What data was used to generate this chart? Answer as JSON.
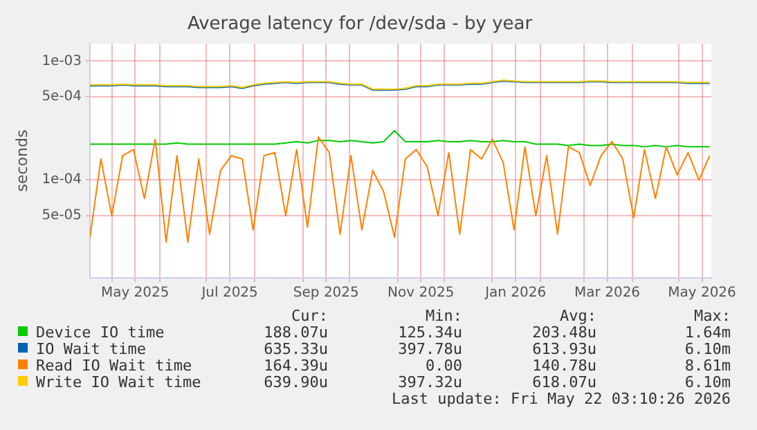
{
  "chart_data": {
    "type": "line",
    "title": "Average latency for /dev/sda - by year",
    "ylabel": "seconds",
    "log": "y",
    "grid": true,
    "legend": "bottom",
    "x": [
      "2025-04-17",
      "2025-04-24",
      "2025-05-01",
      "2025-05-08",
      "2025-05-15",
      "2025-05-22",
      "2025-05-29",
      "2025-06-05",
      "2025-06-12",
      "2025-06-19",
      "2025-06-26",
      "2025-07-03",
      "2025-07-10",
      "2025-07-17",
      "2025-07-24",
      "2025-07-31",
      "2025-08-07",
      "2025-08-14",
      "2025-08-21",
      "2025-08-28",
      "2025-09-04",
      "2025-09-11",
      "2025-09-18",
      "2025-09-25",
      "2025-10-02",
      "2025-10-09",
      "2025-10-16",
      "2025-10-23",
      "2025-10-30",
      "2025-11-06",
      "2025-11-13",
      "2025-11-20",
      "2025-11-27",
      "2025-12-04",
      "2025-12-11",
      "2025-12-18",
      "2025-12-25",
      "2026-01-01",
      "2026-01-08",
      "2026-01-15",
      "2026-01-22",
      "2026-01-29",
      "2026-02-05",
      "2026-02-12",
      "2026-02-19",
      "2026-02-26",
      "2026-03-05",
      "2026-03-12",
      "2026-03-19",
      "2026-03-26",
      "2026-04-02",
      "2026-04-09",
      "2026-04-16",
      "2026-04-23",
      "2026-04-30",
      "2026-05-07",
      "2026-05-14",
      "2026-05-21"
    ],
    "xlim": [
      "2025-04-17",
      "2026-05-22"
    ],
    "xticks": [
      {
        "value": "2025-05-01",
        "label": null
      },
      {
        "value": "2025-05-16",
        "label": "May 2025"
      },
      {
        "value": "2025-06-01",
        "label": null
      },
      {
        "value": "2025-07-01",
        "label": null
      },
      {
        "value": "2025-07-16",
        "label": "Jul 2025"
      },
      {
        "value": "2025-08-01",
        "label": null
      },
      {
        "value": "2025-09-01",
        "label": null
      },
      {
        "value": "2025-09-16",
        "label": "Sep 2025"
      },
      {
        "value": "2025-10-01",
        "label": null
      },
      {
        "value": "2025-11-01",
        "label": null
      },
      {
        "value": "2025-11-16",
        "label": "Nov 2025"
      },
      {
        "value": "2025-12-01",
        "label": null
      },
      {
        "value": "2026-01-01",
        "label": null
      },
      {
        "value": "2026-01-16",
        "label": "Jan 2026"
      },
      {
        "value": "2026-02-01",
        "label": null
      },
      {
        "value": "2026-03-01",
        "label": null
      },
      {
        "value": "2026-03-16",
        "label": "Mar 2026"
      },
      {
        "value": "2026-04-01",
        "label": null
      },
      {
        "value": "2026-05-01",
        "label": null
      },
      {
        "value": "2026-05-16",
        "label": "May 2026"
      }
    ],
    "ylim": [
      1.5e-05,
      0.0014
    ],
    "yticks": [
      {
        "value": 5e-05,
        "label": "5e-05"
      },
      {
        "value": 0.0001,
        "label": "1e-04"
      },
      {
        "value": 0.0005,
        "label": "5e-04"
      },
      {
        "value": 0.001,
        "label": "1e-03"
      }
    ],
    "series": [
      {
        "name": "Device IO time",
        "color": "#00cc00",
        "values": [
          0.0002,
          0.0002,
          0.0002,
          0.0002,
          0.0002,
          0.0002,
          0.0002,
          0.0002,
          0.000205,
          0.0002,
          0.0002,
          0.0002,
          0.0002,
          0.0002,
          0.0002,
          0.0002,
          0.0002,
          0.0002,
          0.000205,
          0.00021,
          0.000205,
          0.000215,
          0.000215,
          0.00021,
          0.000215,
          0.00021,
          0.000205,
          0.00021,
          0.00026,
          0.00021,
          0.00021,
          0.00021,
          0.000215,
          0.00021,
          0.00021,
          0.000215,
          0.00021,
          0.00021,
          0.000215,
          0.00021,
          0.00021,
          0.0002,
          0.0002,
          0.0002,
          0.000195,
          0.0002,
          0.000195,
          0.000195,
          0.0002,
          0.000195,
          0.000195,
          0.00019,
          0.000195,
          0.00019,
          0.000195,
          0.00019,
          0.00019,
          0.00019
        ]
      },
      {
        "name": "IO Wait time",
        "color": "#0066b3",
        "values": [
          0.00062,
          0.00062,
          0.00062,
          0.00063,
          0.00062,
          0.00062,
          0.00062,
          0.00061,
          0.00061,
          0.00061,
          0.0006,
          0.0006,
          0.0006,
          0.00061,
          0.00059,
          0.00062,
          0.00064,
          0.00065,
          0.00066,
          0.00065,
          0.00066,
          0.00066,
          0.00066,
          0.00064,
          0.00063,
          0.00063,
          0.00057,
          0.00057,
          0.00057,
          0.00058,
          0.00061,
          0.00061,
          0.00063,
          0.00063,
          0.00063,
          0.00064,
          0.00064,
          0.00066,
          0.00068,
          0.00067,
          0.00066,
          0.00066,
          0.00066,
          0.00066,
          0.00066,
          0.00066,
          0.00067,
          0.00067,
          0.00066,
          0.00066,
          0.00066,
          0.00066,
          0.00066,
          0.00066,
          0.00066,
          0.00065,
          0.00065,
          0.00065
        ]
      },
      {
        "name": "Read IO Wait time",
        "color": "#ff8000",
        "values": [
          3.3e-05,
          0.00015,
          5e-05,
          0.00016,
          0.00018,
          7e-05,
          0.00022,
          3e-05,
          0.00016,
          3e-05,
          0.00015,
          3.5e-05,
          0.00012,
          0.00016,
          0.00015,
          3.8e-05,
          0.00016,
          0.00017,
          5e-05,
          0.00018,
          4e-05,
          0.00023,
          0.00017,
          3.5e-05,
          0.00016,
          3.8e-05,
          0.00012,
          8e-05,
          3.3e-05,
          0.00015,
          0.00018,
          0.00013,
          5e-05,
          0.00017,
          3.5e-05,
          0.00018,
          0.00015,
          0.00022,
          0.00014,
          3.8e-05,
          0.00019,
          5e-05,
          0.00016,
          3.5e-05,
          0.00019,
          0.00017,
          9e-05,
          0.00016,
          0.00021,
          0.00015,
          4.8e-05,
          0.00018,
          7e-05,
          0.00019,
          0.00011,
          0.00017,
          0.0001,
          0.00016
        ]
      },
      {
        "name": "Write IO Wait time",
        "color": "#ffcc00",
        "values": [
          0.00063,
          0.00063,
          0.00063,
          0.00064,
          0.00063,
          0.00063,
          0.00063,
          0.00062,
          0.00062,
          0.00062,
          0.00061,
          0.00061,
          0.00061,
          0.00062,
          0.0006,
          0.00063,
          0.00065,
          0.00066,
          0.00067,
          0.00066,
          0.00067,
          0.00067,
          0.00067,
          0.00065,
          0.00064,
          0.00064,
          0.00058,
          0.00058,
          0.00058,
          0.00059,
          0.00062,
          0.00062,
          0.00064,
          0.00064,
          0.00064,
          0.00065,
          0.00065,
          0.00067,
          0.00069,
          0.00068,
          0.00067,
          0.00067,
          0.00067,
          0.00067,
          0.00067,
          0.00067,
          0.00068,
          0.00068,
          0.00067,
          0.00067,
          0.00067,
          0.00067,
          0.00067,
          0.00067,
          0.00067,
          0.00066,
          0.00066,
          0.00066
        ]
      }
    ],
    "annotations": [
      "Cur:",
      "Min:",
      "Avg:",
      "Max:",
      "188.07u",
      "125.34u",
      "203.48u",
      "1.64m",
      "635.33u",
      "397.78u",
      "613.93u",
      "6.10m",
      "164.39u",
      "0.00",
      "140.78u",
      "8.61m",
      "639.90u",
      "397.32u",
      "618.07u",
      "6.10m",
      "Last update: Fri May 22 03:10:26 2026"
    ]
  }
}
